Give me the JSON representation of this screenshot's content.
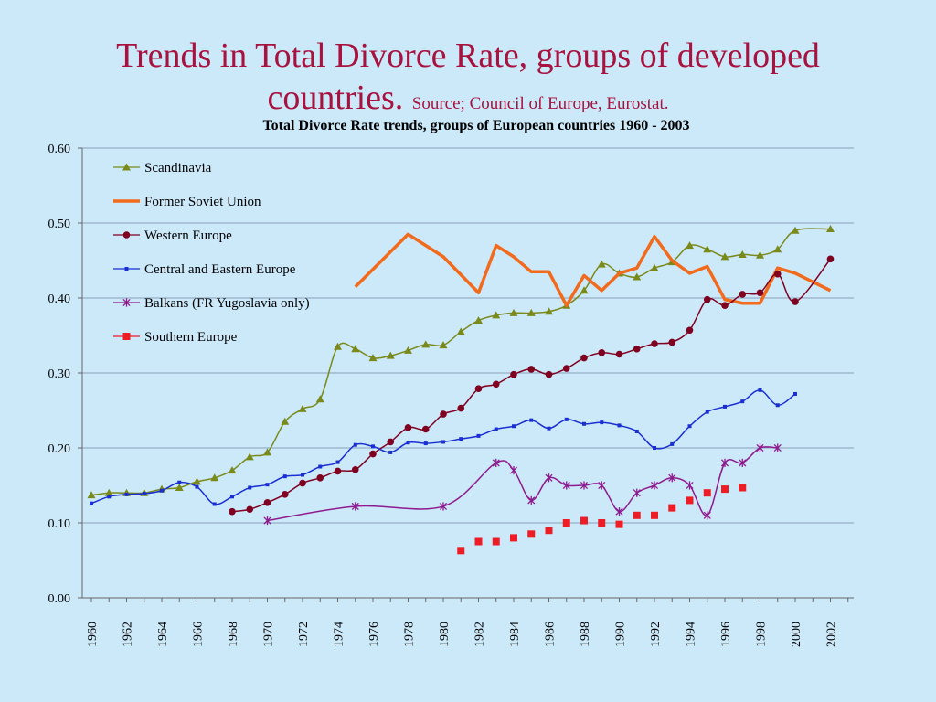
{
  "slide": {
    "title_line1": "Trends in Total Divorce Rate, groups of developed",
    "title_line2": "countries.",
    "source": "Source; Council of Europe, Eurostat."
  },
  "colors": {
    "title": "#a8123e",
    "background": "#cce9fa"
  },
  "chart_data": {
    "type": "line",
    "title": "Total Divorce Rate trends, groups of European countries 1960 - 2003",
    "xlabel": "",
    "ylabel": "",
    "xlim": [
      1960,
      2003
    ],
    "ylim": [
      0,
      0.6
    ],
    "grid": true,
    "legend_position": "top-left",
    "y_ticks": [
      "0.00",
      "0.10",
      "0.20",
      "0.30",
      "0.40",
      "0.50",
      "0.60"
    ],
    "x_ticks": [
      "1960",
      "1962",
      "1964",
      "1966",
      "1968",
      "1970",
      "1972",
      "1974",
      "1976",
      "1978",
      "1980",
      "1982",
      "1984",
      "1986",
      "1988",
      "1990",
      "1992",
      "1994",
      "1996",
      "1998",
      "2000",
      "2002"
    ],
    "series": [
      {
        "name": "Scandinavia",
        "color": "#7a8a1a",
        "marker": "triangle",
        "width": 1.5,
        "points": [
          [
            1960,
            0.137
          ],
          [
            1961,
            0.14
          ],
          [
            1962,
            0.14
          ],
          [
            1963,
            0.14
          ],
          [
            1964,
            0.145
          ],
          [
            1965,
            0.147
          ],
          [
            1966,
            0.155
          ],
          [
            1967,
            0.16
          ],
          [
            1968,
            0.17
          ],
          [
            1969,
            0.188
          ],
          [
            1970,
            0.194
          ],
          [
            1971,
            0.235
          ],
          [
            1972,
            0.252
          ],
          [
            1973,
            0.265
          ],
          [
            1974,
            0.335
          ],
          [
            1975,
            0.332
          ],
          [
            1976,
            0.32
          ],
          [
            1977,
            0.323
          ],
          [
            1978,
            0.33
          ],
          [
            1979,
            0.338
          ],
          [
            1980,
            0.337
          ],
          [
            1981,
            0.355
          ],
          [
            1982,
            0.37
          ],
          [
            1983,
            0.377
          ],
          [
            1984,
            0.38
          ],
          [
            1985,
            0.38
          ],
          [
            1986,
            0.382
          ],
          [
            1987,
            0.39
          ],
          [
            1988,
            0.41
          ],
          [
            1989,
            0.445
          ],
          [
            1990,
            0.433
          ],
          [
            1991,
            0.428
          ],
          [
            1992,
            0.44
          ],
          [
            1993,
            0.448
          ],
          [
            1994,
            0.47
          ],
          [
            1995,
            0.465
          ],
          [
            1996,
            0.455
          ],
          [
            1997,
            0.458
          ],
          [
            1998,
            0.457
          ],
          [
            1999,
            0.465
          ],
          [
            2000,
            0.49
          ],
          [
            2002,
            0.492
          ]
        ]
      },
      {
        "name": "Former Soviet Union",
        "color": "#f26a1b",
        "marker": "none",
        "width": 3.5,
        "points": [
          [
            1975,
            0.415
          ],
          [
            1978,
            0.485
          ],
          [
            1980,
            0.455
          ],
          [
            1982,
            0.407
          ],
          [
            1983,
            0.47
          ],
          [
            1984,
            0.455
          ],
          [
            1985,
            0.435
          ],
          [
            1986,
            0.435
          ],
          [
            1987,
            0.39
          ],
          [
            1988,
            0.43
          ],
          [
            1989,
            0.41
          ],
          [
            1990,
            0.433
          ],
          [
            1991,
            0.44
          ],
          [
            1992,
            0.482
          ],
          [
            1993,
            0.45
          ],
          [
            1994,
            0.433
          ],
          [
            1995,
            0.442
          ],
          [
            1996,
            0.398
          ],
          [
            1997,
            0.393
          ],
          [
            1998,
            0.393
          ],
          [
            1999,
            0.44
          ],
          [
            2000,
            0.433
          ],
          [
            2002,
            0.41
          ]
        ]
      },
      {
        "name": "Western Europe",
        "color": "#800020",
        "marker": "circle",
        "width": 1.5,
        "points": [
          [
            1968,
            0.115
          ],
          [
            1969,
            0.118
          ],
          [
            1970,
            0.127
          ],
          [
            1971,
            0.138
          ],
          [
            1972,
            0.153
          ],
          [
            1973,
            0.16
          ],
          [
            1974,
            0.169
          ],
          [
            1975,
            0.171
          ],
          [
            1976,
            0.192
          ],
          [
            1977,
            0.208
          ],
          [
            1978,
            0.227
          ],
          [
            1979,
            0.225
          ],
          [
            1980,
            0.245
          ],
          [
            1981,
            0.253
          ],
          [
            1982,
            0.279
          ],
          [
            1983,
            0.285
          ],
          [
            1984,
            0.298
          ],
          [
            1985,
            0.305
          ],
          [
            1986,
            0.298
          ],
          [
            1987,
            0.306
          ],
          [
            1988,
            0.32
          ],
          [
            1989,
            0.327
          ],
          [
            1990,
            0.325
          ],
          [
            1991,
            0.332
          ],
          [
            1992,
            0.339
          ],
          [
            1993,
            0.341
          ],
          [
            1994,
            0.357
          ],
          [
            1995,
            0.398
          ],
          [
            1996,
            0.39
          ],
          [
            1997,
            0.405
          ],
          [
            1998,
            0.407
          ],
          [
            1999,
            0.432
          ],
          [
            2000,
            0.395
          ],
          [
            2002,
            0.452
          ]
        ]
      },
      {
        "name": "Central and Eastern Europe",
        "color": "#1a2fd1",
        "marker": "smallsquare",
        "width": 1.5,
        "points": [
          [
            1960,
            0.126
          ],
          [
            1961,
            0.135
          ],
          [
            1962,
            0.138
          ],
          [
            1963,
            0.139
          ],
          [
            1964,
            0.143
          ],
          [
            1965,
            0.154
          ],
          [
            1966,
            0.148
          ],
          [
            1967,
            0.125
          ],
          [
            1968,
            0.135
          ],
          [
            1969,
            0.147
          ],
          [
            1970,
            0.151
          ],
          [
            1971,
            0.162
          ],
          [
            1972,
            0.164
          ],
          [
            1973,
            0.175
          ],
          [
            1974,
            0.181
          ],
          [
            1975,
            0.204
          ],
          [
            1976,
            0.202
          ],
          [
            1977,
            0.194
          ],
          [
            1978,
            0.207
          ],
          [
            1979,
            0.206
          ],
          [
            1980,
            0.208
          ],
          [
            1981,
            0.212
          ],
          [
            1982,
            0.216
          ],
          [
            1983,
            0.225
          ],
          [
            1984,
            0.229
          ],
          [
            1985,
            0.237
          ],
          [
            1986,
            0.226
          ],
          [
            1987,
            0.238
          ],
          [
            1988,
            0.232
          ],
          [
            1989,
            0.234
          ],
          [
            1990,
            0.23
          ],
          [
            1991,
            0.222
          ],
          [
            1992,
            0.2
          ],
          [
            1993,
            0.205
          ],
          [
            1994,
            0.229
          ],
          [
            1995,
            0.248
          ],
          [
            1996,
            0.255
          ],
          [
            1997,
            0.262
          ],
          [
            1998,
            0.277
          ],
          [
            1999,
            0.257
          ],
          [
            2000,
            0.272
          ]
        ]
      },
      {
        "name": "Balkans (FR Yugoslavia only)",
        "color": "#8e1a8e",
        "marker": "star",
        "width": 1.5,
        "points": [
          [
            1970,
            0.103
          ],
          [
            1975,
            0.122
          ],
          [
            1980,
            0.122
          ],
          [
            1983,
            0.18
          ],
          [
            1984,
            0.17
          ],
          [
            1985,
            0.13
          ],
          [
            1986,
            0.16
          ],
          [
            1987,
            0.15
          ],
          [
            1988,
            0.15
          ],
          [
            1989,
            0.15
          ],
          [
            1990,
            0.115
          ],
          [
            1991,
            0.14
          ],
          [
            1992,
            0.15
          ],
          [
            1993,
            0.16
          ],
          [
            1994,
            0.15
          ],
          [
            1995,
            0.11
          ],
          [
            1996,
            0.18
          ],
          [
            1997,
            0.18
          ],
          [
            1998,
            0.2
          ],
          [
            1999,
            0.2
          ]
        ]
      },
      {
        "name": "Southern Europe",
        "color": "#ee1c24",
        "marker": "square",
        "width": 1.5,
        "points": [
          [
            1981,
            0.063
          ],
          [
            1982,
            0.075
          ],
          [
            1983,
            0.075
          ],
          [
            1984,
            0.08
          ],
          [
            1985,
            0.085
          ],
          [
            1986,
            0.09
          ],
          [
            1987,
            0.1
          ],
          [
            1988,
            0.103
          ],
          [
            1989,
            0.1
          ],
          [
            1990,
            0.098
          ],
          [
            1991,
            0.11
          ],
          [
            1992,
            0.11
          ],
          [
            1993,
            0.12
          ],
          [
            1994,
            0.13
          ],
          [
            1995,
            0.14
          ],
          [
            1996,
            0.145
          ],
          [
            1997,
            0.147
          ]
        ]
      }
    ]
  }
}
